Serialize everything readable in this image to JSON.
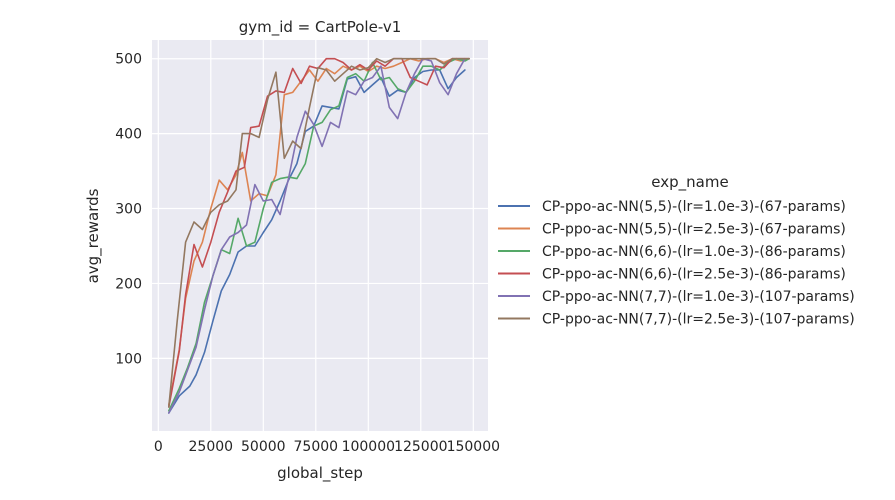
{
  "chart_data": {
    "type": "line",
    "title": "gym_id = CartPole-v1",
    "xlabel": "global_step",
    "ylabel": "avg_rewards",
    "xlim": [
      -3000,
      157000
    ],
    "ylim": [
      3,
      525
    ],
    "xticks": [
      0,
      25000,
      50000,
      75000,
      100000,
      125000,
      150000
    ],
    "xtick_labels": [
      "0",
      "25000",
      "50000",
      "75000",
      "100000",
      "125000",
      "150000"
    ],
    "yticks": [
      100,
      200,
      300,
      400,
      500
    ],
    "ytick_labels": [
      "100",
      "200",
      "300",
      "400",
      "500"
    ],
    "grid": true,
    "legend": {
      "title": "exp_name",
      "placement": "right"
    },
    "series": [
      {
        "name": "CP-ppo-ac-NN(5,5)-(lr=1.0e-3)-(67-params)",
        "color": "#4c72b0",
        "points": [
          [
            5000,
            27
          ],
          [
            10000,
            50
          ],
          [
            15000,
            63
          ],
          [
            18000,
            78
          ],
          [
            22000,
            108
          ],
          [
            26000,
            150
          ],
          [
            30000,
            190
          ],
          [
            34000,
            212
          ],
          [
            38000,
            242
          ],
          [
            42000,
            250
          ],
          [
            46000,
            250
          ],
          [
            50000,
            268
          ],
          [
            54000,
            285
          ],
          [
            58000,
            310
          ],
          [
            62000,
            338
          ],
          [
            66000,
            360
          ],
          [
            70000,
            403
          ],
          [
            74000,
            410
          ],
          [
            78000,
            437
          ],
          [
            82000,
            435
          ],
          [
            86000,
            433
          ],
          [
            90000,
            473
          ],
          [
            94000,
            476
          ],
          [
            98000,
            455
          ],
          [
            102000,
            465
          ],
          [
            106000,
            475
          ],
          [
            110000,
            450
          ],
          [
            114000,
            458
          ],
          [
            118000,
            455
          ],
          [
            122000,
            475
          ],
          [
            126000,
            483
          ],
          [
            130000,
            485
          ],
          [
            134000,
            485
          ],
          [
            138000,
            460
          ],
          [
            142000,
            475
          ],
          [
            146000,
            485
          ]
        ]
      },
      {
        "name": "CP-ppo-ac-NN(5,5)-(lr=2.5e-3)-(67-params)",
        "color": "#dd8452",
        "points": [
          [
            5000,
            38
          ],
          [
            10000,
            112
          ],
          [
            13000,
            180
          ],
          [
            17000,
            230
          ],
          [
            21000,
            255
          ],
          [
            25000,
            300
          ],
          [
            29000,
            338
          ],
          [
            33000,
            325
          ],
          [
            37000,
            345
          ],
          [
            40000,
            375
          ],
          [
            44000,
            310
          ],
          [
            48000,
            320
          ],
          [
            52000,
            317
          ],
          [
            56000,
            345
          ],
          [
            60000,
            452
          ],
          [
            64000,
            455
          ],
          [
            68000,
            470
          ],
          [
            72000,
            485
          ],
          [
            76000,
            470
          ],
          [
            80000,
            487
          ],
          [
            84000,
            480
          ],
          [
            88000,
            490
          ],
          [
            92000,
            485
          ],
          [
            96000,
            490
          ],
          [
            100000,
            483
          ],
          [
            104000,
            490
          ],
          [
            108000,
            487
          ],
          [
            112000,
            490
          ],
          [
            116000,
            495
          ],
          [
            120000,
            500
          ],
          [
            124000,
            497
          ],
          [
            128000,
            500
          ],
          [
            132000,
            500
          ],
          [
            136000,
            495
          ],
          [
            140000,
            500
          ],
          [
            144000,
            497
          ],
          [
            148000,
            500
          ]
        ]
      },
      {
        "name": "CP-ppo-ac-NN(6,6)-(lr=1.0e-3)-(86-params)",
        "color": "#55a868",
        "points": [
          [
            5000,
            30
          ],
          [
            10000,
            60
          ],
          [
            14000,
            88
          ],
          [
            18000,
            120
          ],
          [
            22000,
            175
          ],
          [
            26000,
            210
          ],
          [
            30000,
            245
          ],
          [
            34000,
            240
          ],
          [
            38000,
            287
          ],
          [
            42000,
            250
          ],
          [
            46000,
            255
          ],
          [
            50000,
            300
          ],
          [
            54000,
            335
          ],
          [
            58000,
            340
          ],
          [
            62000,
            342
          ],
          [
            66000,
            340
          ],
          [
            70000,
            360
          ],
          [
            74000,
            410
          ],
          [
            78000,
            415
          ],
          [
            82000,
            432
          ],
          [
            86000,
            437
          ],
          [
            90000,
            475
          ],
          [
            94000,
            480
          ],
          [
            98000,
            470
          ],
          [
            102000,
            495
          ],
          [
            106000,
            472
          ],
          [
            110000,
            475
          ],
          [
            114000,
            460
          ],
          [
            118000,
            455
          ],
          [
            122000,
            470
          ],
          [
            126000,
            490
          ],
          [
            130000,
            490
          ],
          [
            134000,
            485
          ],
          [
            138000,
            495
          ],
          [
            142000,
            500
          ],
          [
            146000,
            497
          ],
          [
            148000,
            500
          ]
        ]
      },
      {
        "name": "CP-ppo-ac-NN(6,6)-(lr=2.5e-3)-(86-params)",
        "color": "#c44e52",
        "points": [
          [
            5000,
            35
          ],
          [
            10000,
            110
          ],
          [
            13000,
            185
          ],
          [
            17000,
            252
          ],
          [
            21000,
            222
          ],
          [
            25000,
            255
          ],
          [
            29000,
            295
          ],
          [
            33000,
            322
          ],
          [
            37000,
            350
          ],
          [
            41000,
            355
          ],
          [
            44000,
            408
          ],
          [
            48000,
            410
          ],
          [
            52000,
            450
          ],
          [
            56000,
            457
          ],
          [
            60000,
            455
          ],
          [
            64000,
            487
          ],
          [
            68000,
            467
          ],
          [
            72000,
            490
          ],
          [
            76000,
            487
          ],
          [
            80000,
            500
          ],
          [
            84000,
            500
          ],
          [
            88000,
            495
          ],
          [
            92000,
            485
          ],
          [
            96000,
            492
          ],
          [
            100000,
            485
          ],
          [
            104000,
            497
          ],
          [
            108000,
            490
          ],
          [
            112000,
            500
          ],
          [
            116000,
            500
          ],
          [
            120000,
            475
          ],
          [
            124000,
            470
          ],
          [
            128000,
            465
          ],
          [
            132000,
            490
          ],
          [
            136000,
            488
          ],
          [
            140000,
            500
          ],
          [
            144000,
            500
          ],
          [
            148000,
            500
          ]
        ]
      },
      {
        "name": "CP-ppo-ac-NN(7,7)-(lr=1.0e-3)-(107-params)",
        "color": "#8172b3",
        "points": [
          [
            5000,
            27
          ],
          [
            10000,
            55
          ],
          [
            14000,
            85
          ],
          [
            18000,
            115
          ],
          [
            22000,
            165
          ],
          [
            26000,
            210
          ],
          [
            30000,
            245
          ],
          [
            34000,
            262
          ],
          [
            38000,
            268
          ],
          [
            42000,
            278
          ],
          [
            46000,
            332
          ],
          [
            50000,
            310
          ],
          [
            54000,
            312
          ],
          [
            58000,
            292
          ],
          [
            62000,
            340
          ],
          [
            66000,
            395
          ],
          [
            70000,
            430
          ],
          [
            74000,
            412
          ],
          [
            78000,
            383
          ],
          [
            82000,
            415
          ],
          [
            86000,
            408
          ],
          [
            90000,
            457
          ],
          [
            94000,
            452
          ],
          [
            98000,
            470
          ],
          [
            102000,
            475
          ],
          [
            106000,
            490
          ],
          [
            110000,
            435
          ],
          [
            114000,
            420
          ],
          [
            118000,
            455
          ],
          [
            122000,
            480
          ],
          [
            126000,
            500
          ],
          [
            130000,
            497
          ],
          [
            134000,
            468
          ],
          [
            138000,
            452
          ],
          [
            142000,
            480
          ],
          [
            146000,
            500
          ]
        ]
      },
      {
        "name": "CP-ppo-ac-NN(7,7)-(lr=2.5e-3)-(107-params)",
        "color": "#937860",
        "points": [
          [
            5000,
            35
          ],
          [
            9000,
            150
          ],
          [
            13000,
            255
          ],
          [
            17000,
            282
          ],
          [
            21000,
            272
          ],
          [
            25000,
            295
          ],
          [
            29000,
            305
          ],
          [
            33000,
            310
          ],
          [
            37000,
            325
          ],
          [
            40000,
            400
          ],
          [
            44000,
            400
          ],
          [
            48000,
            395
          ],
          [
            52000,
            445
          ],
          [
            56000,
            482
          ],
          [
            60000,
            367
          ],
          [
            64000,
            390
          ],
          [
            68000,
            380
          ],
          [
            72000,
            435
          ],
          [
            76000,
            488
          ],
          [
            80000,
            485
          ],
          [
            84000,
            470
          ],
          [
            88000,
            480
          ],
          [
            92000,
            490
          ],
          [
            96000,
            485
          ],
          [
            100000,
            488
          ],
          [
            104000,
            500
          ],
          [
            108000,
            495
          ],
          [
            112000,
            500
          ],
          [
            116000,
            500
          ],
          [
            120000,
            500
          ],
          [
            124000,
            500
          ],
          [
            128000,
            500
          ],
          [
            132000,
            500
          ],
          [
            136000,
            493
          ],
          [
            140000,
            500
          ],
          [
            144000,
            500
          ],
          [
            148000,
            500
          ]
        ]
      }
    ]
  }
}
